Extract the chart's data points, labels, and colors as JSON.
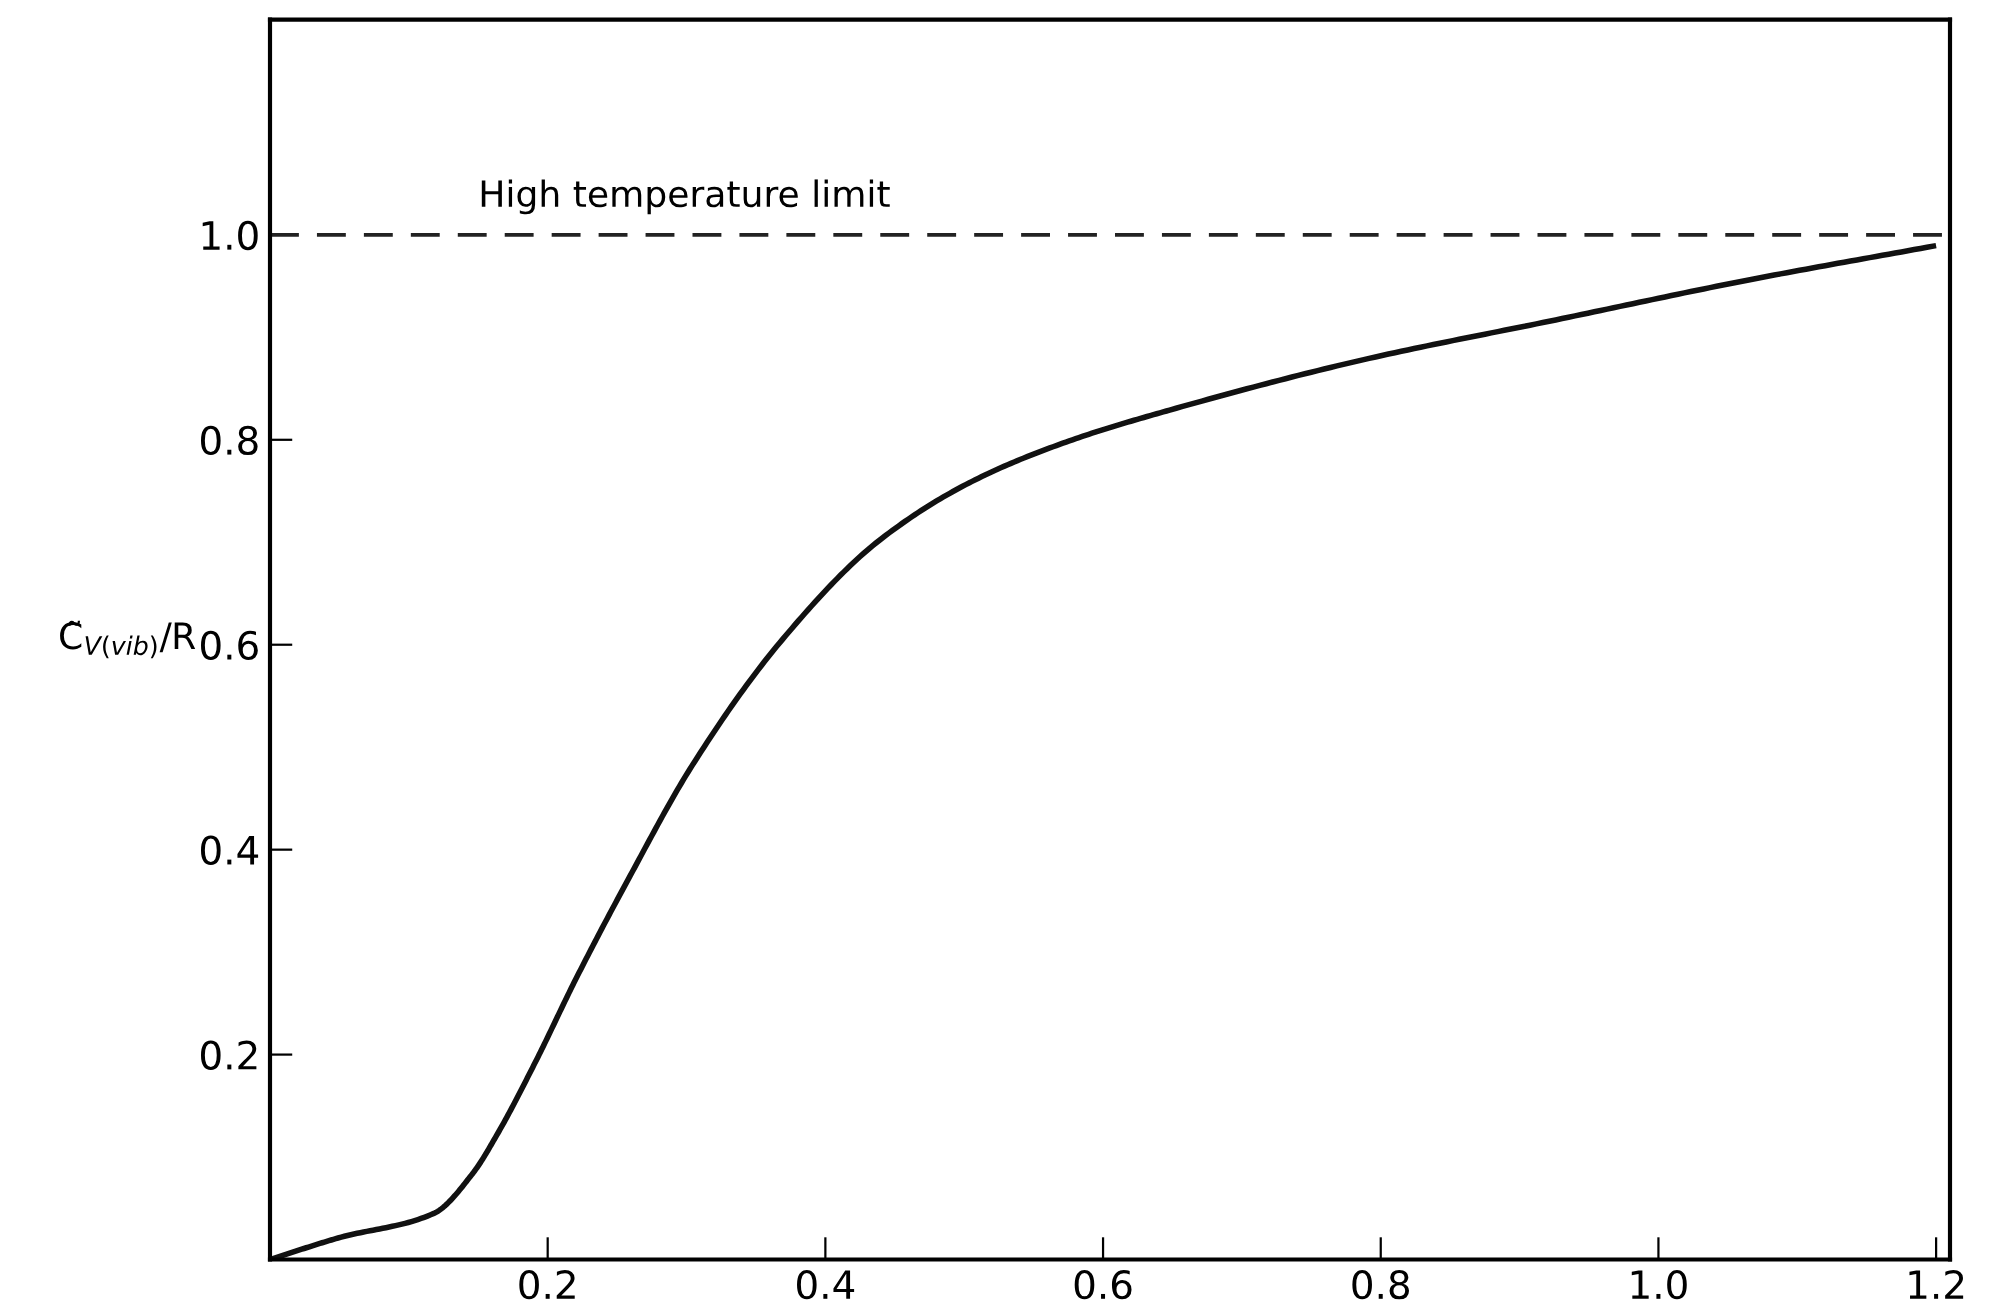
{
  "chart_data": {
    "type": "line",
    "ylabel": "C̃$_{V(vib)}$/R",
    "x": [
      0,
      0.049,
      0.118,
      0.146,
      0.164,
      0.192,
      0.22,
      0.258,
      0.304,
      0.369,
      0.439,
      0.508,
      0.578,
      0.648,
      0.787,
      0.926,
      1.065,
      1.198
    ],
    "series": [
      {
        "color": "#111111",
        "values": [
          0,
          0.021,
          0.045,
          0.084,
          0.123,
          0.195,
          0.273,
          0.371,
          0.482,
          0.605,
          0.702,
          0.761,
          0.8,
          0.829,
          0.878,
          0.917,
          0.956,
          0.989
        ]
      }
    ],
    "xlim": [
      0,
      1.21
    ],
    "ylim": [
      0,
      1.21
    ],
    "xticks": [
      0.2,
      0.4,
      0.6,
      0.8,
      {
        "value": 1.0,
        "label": "1.0"
      },
      1.2
    ],
    "yticks": [
      0.2,
      0.4,
      0.6,
      0.8,
      {
        "value": 1.0,
        "label": "1.0"
      }
    ],
    "ref_lines": [
      {
        "axis": "y",
        "value": 1.0,
        "label": "High temperature limit",
        "color": "#222222",
        "line_style": "dashed"
      }
    ],
    "grid": false,
    "legend": false,
    "marker": "none",
    "line_style": "solid"
  }
}
